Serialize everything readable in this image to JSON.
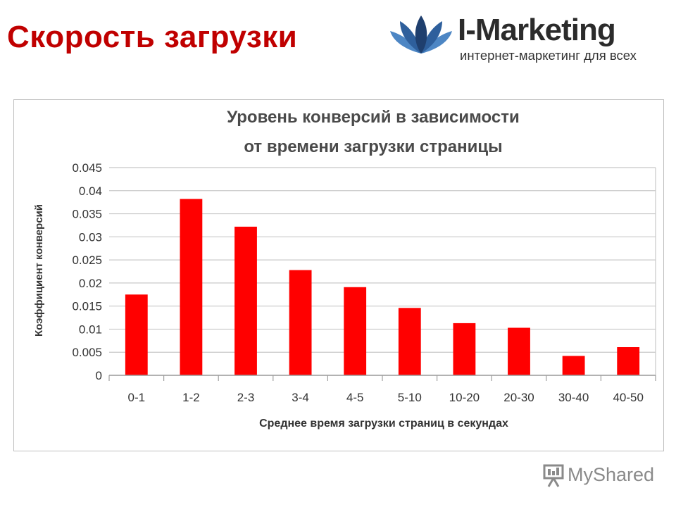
{
  "slide": {
    "title": "Скорость загрузки"
  },
  "logo": {
    "brand": "I-Marketing",
    "tagline": "интернет-маркетинг для всех",
    "icon": "lotus-icon",
    "colors": {
      "dark_blue": "#1f3f6e",
      "light_blue": "#4d86c4"
    }
  },
  "watermark": {
    "text": "MyShared",
    "icon": "presentation-icon"
  },
  "chart_data": {
    "type": "bar",
    "title_lines": [
      "Уровень конверсий в зависимости",
      "от времени загрузки страницы"
    ],
    "xlabel": "Среднее время загрузки страниц в секундах",
    "ylabel": "Коэффициент конверсий",
    "categories": [
      "0-1",
      "1-2",
      "2-3",
      "3-4",
      "4-5",
      "5-10",
      "10-20",
      "20-30",
      "30-40",
      "40-50"
    ],
    "values": [
      0.0175,
      0.0382,
      0.0322,
      0.0228,
      0.0191,
      0.0146,
      0.0113,
      0.0103,
      0.0042,
      0.0061
    ],
    "yticks": [
      "0",
      "0.005",
      "0.01",
      "0.015",
      "0.02",
      "0.025",
      "0.03",
      "0.035",
      "0.04",
      "0.045"
    ],
    "ylim": [
      0,
      0.045
    ],
    "grid": true,
    "legend": "none",
    "bar_color": "#ff0000",
    "grid_color": "#c8c8c8"
  }
}
